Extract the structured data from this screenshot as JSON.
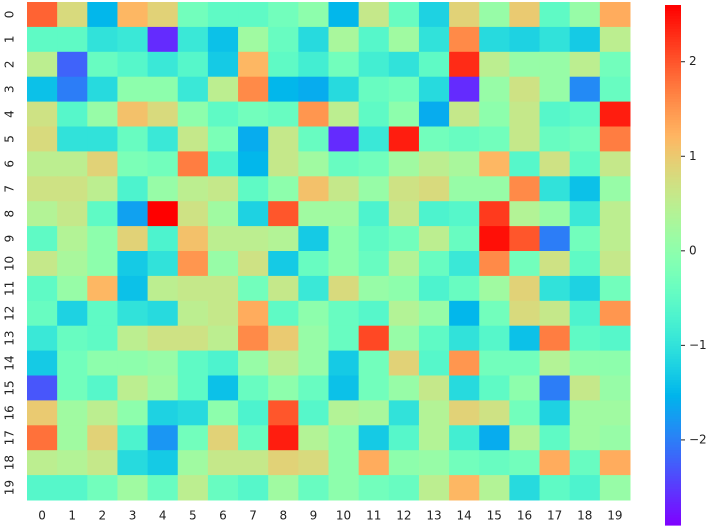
{
  "chart_data": {
    "type": "heatmap",
    "x_labels": [
      "0",
      "1",
      "2",
      "3",
      "4",
      "5",
      "6",
      "7",
      "8",
      "9",
      "10",
      "11",
      "12",
      "13",
      "14",
      "15",
      "16",
      "17",
      "18",
      "19"
    ],
    "y_labels": [
      "0",
      "1",
      "2",
      "3",
      "4",
      "5",
      "6",
      "7",
      "8",
      "9",
      "10",
      "11",
      "12",
      "13",
      "14",
      "15",
      "16",
      "17",
      "18",
      "19"
    ],
    "values": [
      [
        1.9,
        0.8,
        -1.5,
        1.2,
        0.9,
        -0.3,
        -0.5,
        -0.5,
        -0.3,
        0.0,
        -1.5,
        0.6,
        -0.4,
        -1.2,
        0.9,
        0.1,
        1.0,
        -0.5,
        0.1,
        1.3
      ],
      [
        -0.5,
        -0.5,
        -1.0,
        -0.9,
        -2.6,
        -0.9,
        -1.4,
        0.2,
        -0.4,
        -1.1,
        0.3,
        -0.6,
        0.2,
        -1.0,
        1.6,
        -1.1,
        -1.2,
        -1.0,
        -1.3,
        0.5
      ],
      [
        0.5,
        -2.2,
        -0.4,
        -0.6,
        -0.9,
        -0.6,
        -1.3,
        1.2,
        -0.5,
        -0.8,
        -0.3,
        -0.8,
        -1.0,
        -0.5,
        2.3,
        0.5,
        0.1,
        0.1,
        0.5,
        -0.3
      ],
      [
        -1.4,
        -2.0,
        -1.1,
        0.0,
        0.0,
        -0.9,
        0.5,
        1.6,
        -1.5,
        -1.6,
        -1.1,
        -0.4,
        -0.3,
        -1.1,
        -2.6,
        0.1,
        0.7,
        0.1,
        -1.9,
        -0.4
      ],
      [
        0.7,
        -0.6,
        0.1,
        1.1,
        0.8,
        0.0,
        -0.5,
        -0.3,
        -0.4,
        1.5,
        0.5,
        -0.5,
        0.0,
        -1.6,
        0.6,
        0.0,
        0.6,
        -0.6,
        -0.5,
        2.4
      ],
      [
        0.8,
        -1.0,
        -1.0,
        -0.4,
        -0.9,
        0.6,
        -0.2,
        -1.6,
        0.6,
        -0.4,
        -2.6,
        -0.9,
        2.4,
        -0.3,
        -0.4,
        -0.3,
        0.6,
        -0.4,
        -0.3,
        1.7
      ],
      [
        0.5,
        0.5,
        0.9,
        -0.2,
        -0.3,
        1.7,
        -0.7,
        -1.5,
        0.6,
        0.2,
        -0.4,
        -0.3,
        0.2,
        0.5,
        0.3,
        1.2,
        -0.6,
        0.7,
        -0.5,
        0.6
      ],
      [
        0.7,
        0.7,
        0.5,
        -0.7,
        0.1,
        0.5,
        0.6,
        -0.5,
        0.0,
        1.1,
        0.6,
        0.1,
        0.7,
        0.8,
        0.1,
        0.1,
        1.6,
        -1.0,
        -1.4,
        0.1
      ],
      [
        0.4,
        0.6,
        -0.5,
        -1.7,
        2.6,
        0.7,
        0.2,
        -1.2,
        2.0,
        0.2,
        0.2,
        -0.7,
        0.6,
        -0.7,
        -0.6,
        2.2,
        0.4,
        0.1,
        -0.9,
        0.5
      ],
      [
        -0.5,
        0.4,
        0.0,
        0.9,
        -0.7,
        1.1,
        0.5,
        0.5,
        0.4,
        -1.3,
        0.0,
        -0.5,
        -0.3,
        0.5,
        -0.4,
        2.5,
        2.0,
        -2.0,
        -0.3,
        0.5
      ],
      [
        0.6,
        0.3,
        0.0,
        -1.3,
        -1.0,
        1.5,
        0.1,
        0.7,
        -1.3,
        -0.4,
        0.0,
        -0.4,
        0.4,
        -0.4,
        -0.9,
        1.6,
        -0.3,
        0.7,
        -0.5,
        0.6
      ],
      [
        -0.5,
        0.1,
        1.2,
        -1.4,
        0.5,
        0.6,
        0.6,
        -0.3,
        0.6,
        -0.9,
        0.8,
        0.1,
        0.0,
        -0.7,
        -0.4,
        0.2,
        0.9,
        -1.0,
        -1.2,
        -0.3
      ],
      [
        -0.4,
        -1.2,
        -0.5,
        -1.0,
        -1.1,
        0.5,
        0.6,
        1.3,
        -0.5,
        0.0,
        -0.4,
        -0.6,
        0.4,
        0.1,
        -1.5,
        -0.3,
        0.8,
        0.6,
        -0.7,
        1.5
      ],
      [
        -0.9,
        -0.4,
        -0.5,
        0.5,
        0.7,
        0.7,
        0.5,
        1.6,
        1.0,
        0.1,
        -0.4,
        2.1,
        0.1,
        -0.5,
        -1.0,
        -0.6,
        -1.4,
        1.7,
        -0.5,
        -0.6
      ],
      [
        -1.3,
        -0.3,
        0.0,
        0.0,
        0.1,
        -0.5,
        -0.7,
        0.1,
        0.5,
        0.1,
        -1.3,
        -0.3,
        0.9,
        -0.6,
        1.5,
        -0.3,
        -0.3,
        0.4,
        0.0,
        0.0
      ],
      [
        -2.3,
        -0.3,
        -0.6,
        0.5,
        0.2,
        -0.5,
        -1.4,
        -0.4,
        0.0,
        -0.4,
        -1.4,
        -0.3,
        0.1,
        0.6,
        -1.1,
        -0.5,
        0.0,
        -2.0,
        0.6,
        0.1
      ],
      [
        1.0,
        0.2,
        0.5,
        0.0,
        -1.2,
        -1.1,
        0.0,
        -0.7,
        2.0,
        -0.6,
        0.4,
        0.3,
        -1.0,
        0.4,
        0.9,
        0.7,
        -0.3,
        -1.2,
        0.2,
        0.2
      ],
      [
        1.8,
        0.2,
        0.9,
        -0.7,
        -1.8,
        -0.3,
        0.9,
        -0.4,
        2.4,
        0.4,
        0.0,
        -1.3,
        -0.6,
        0.4,
        -0.8,
        -1.6,
        0.4,
        -0.5,
        0.2,
        0.1
      ],
      [
        0.5,
        0.4,
        0.6,
        -1.1,
        -1.3,
        0.2,
        0.6,
        0.6,
        0.9,
        0.8,
        0.0,
        1.3,
        0.0,
        0.1,
        -0.3,
        -0.4,
        -0.3,
        1.3,
        -0.4,
        1.3
      ],
      [
        -0.6,
        -0.6,
        -0.3,
        0.2,
        -0.4,
        0.5,
        -0.4,
        -0.6,
        0.2,
        -0.4,
        0.0,
        -0.3,
        -0.4,
        0.5,
        1.2,
        0.4,
        -1.1,
        -0.5,
        -0.7,
        0.1
      ]
    ],
    "colormap": "rainbow",
    "clim": [
      -2.9,
      2.6
    ],
    "colorbar_ticks": [
      {
        "value": -2,
        "label": "−2"
      },
      {
        "value": -1,
        "label": "−1"
      },
      0,
      1,
      2
    ]
  }
}
